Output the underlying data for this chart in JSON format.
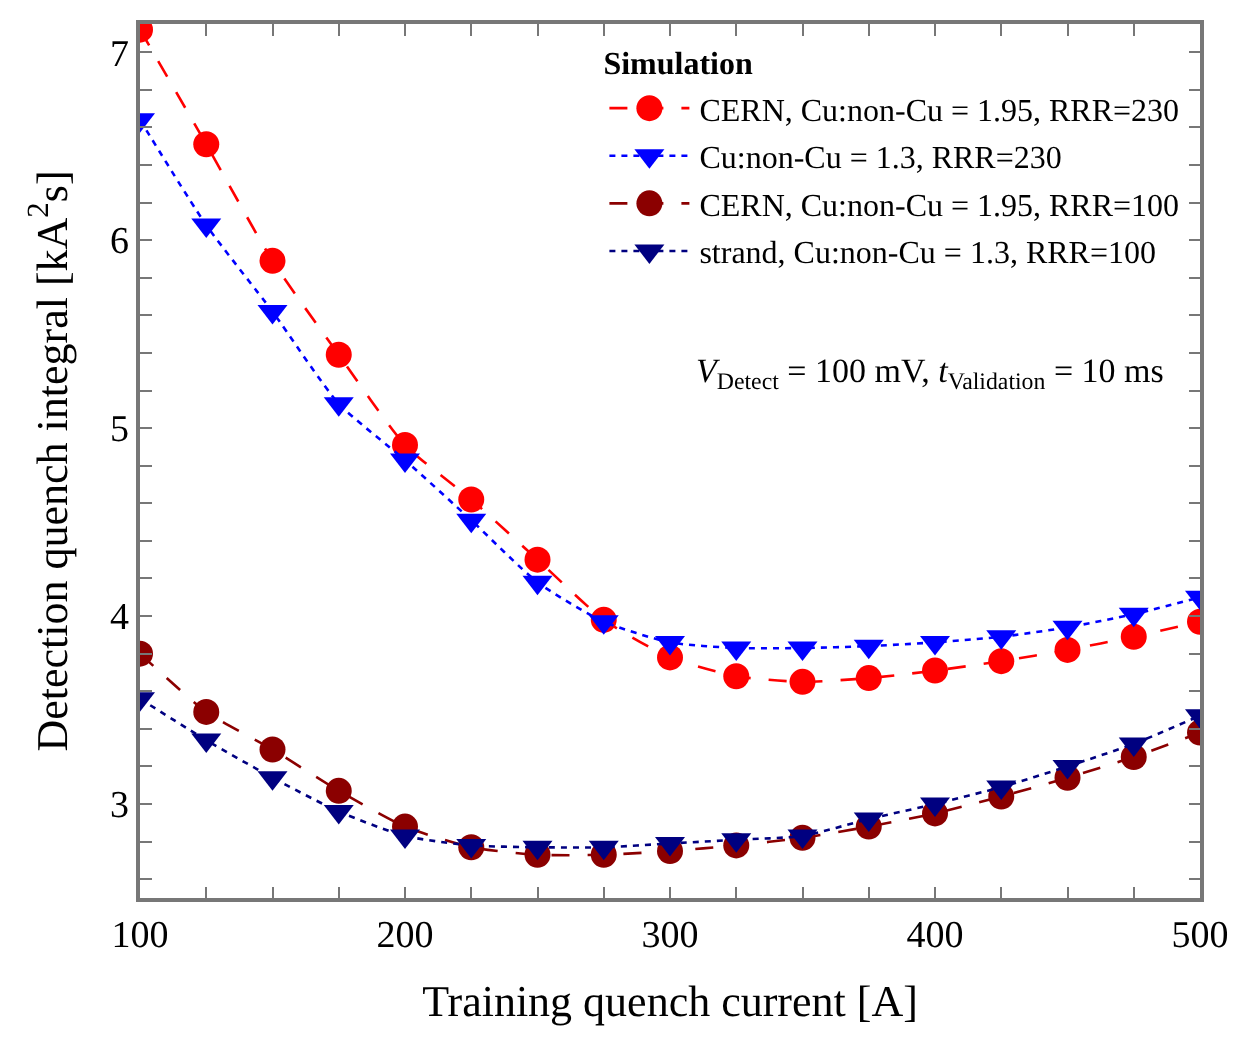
{
  "chart_data": {
    "type": "line",
    "xlabel": "Training quench current [A]",
    "ylabel": "Detection quench integral [kA$^{2}$s]",
    "legend_title": "Simulation",
    "legend": "top right",
    "x": [
      100,
      125,
      150,
      175,
      200,
      225,
      250,
      275,
      300,
      325,
      350,
      375,
      400,
      425,
      450,
      475,
      500
    ],
    "xlim": [
      100,
      500
    ],
    "xticks": [
      100,
      {
        "value": 125,
        "label": null
      },
      {
        "value": 150,
        "label": null
      },
      {
        "value": 175,
        "label": null
      },
      200,
      {
        "value": 225,
        "label": null
      },
      {
        "value": 250,
        "label": null
      },
      {
        "value": 275,
        "label": null
      },
      300,
      {
        "value": 325,
        "label": null
      },
      {
        "value": 350,
        "label": null
      },
      {
        "value": 375,
        "label": null
      },
      400,
      {
        "value": 425,
        "label": null
      },
      {
        "value": 450,
        "label": null
      },
      {
        "value": 475,
        "label": null
      },
      500
    ],
    "ylim": [
      2.5,
      7.15
    ],
    "yticks": [
      {
        "value": 2.6,
        "label": null
      },
      {
        "value": 2.8,
        "label": null
      },
      3,
      {
        "value": 3.2,
        "label": null
      },
      {
        "value": 3.4,
        "label": null
      },
      {
        "value": 3.6,
        "label": null
      },
      {
        "value": 3.8,
        "label": null
      },
      4,
      {
        "value": 4.2,
        "label": null
      },
      {
        "value": 4.4,
        "label": null
      },
      {
        "value": 4.6,
        "label": null
      },
      {
        "value": 4.8,
        "label": null
      },
      5,
      {
        "value": 5.2,
        "label": null
      },
      {
        "value": 5.4,
        "label": null
      },
      {
        "value": 5.6,
        "label": null
      },
      {
        "value": 5.8,
        "label": null
      },
      6,
      {
        "value": 6.2,
        "label": null
      },
      {
        "value": 6.4,
        "label": null
      },
      {
        "value": 6.6,
        "label": null
      },
      {
        "value": 6.8,
        "label": null
      },
      7
    ],
    "annotations": [
      "V$_{Detect}$ = 100 mV, t$_{Validation}$ = 10 ms"
    ],
    "series": [
      {
        "name": "CERN, Cu:non-Cu = 1.95, RRR=230",
        "color": "#ff0000",
        "marker": "circle",
        "line_style": "dashed",
        "values": [
          7.12,
          6.51,
          5.89,
          5.39,
          4.91,
          4.62,
          4.3,
          3.98,
          3.78,
          3.68,
          3.65,
          3.67,
          3.71,
          3.76,
          3.82,
          3.89,
          3.97
        ]
      },
      {
        "name": "Cu:non-Cu = 1.3, RRR=230",
        "color": "#0000ff",
        "marker": "triangle",
        "line_style": "dotted",
        "values": [
          6.64,
          6.08,
          5.62,
          5.13,
          4.83,
          4.51,
          4.18,
          3.97,
          3.86,
          3.83,
          3.83,
          3.84,
          3.86,
          3.89,
          3.94,
          4.01,
          4.1
        ]
      },
      {
        "name": "CERN, Cu:non-Cu = 1.95, RRR=100",
        "color": "#8b0000",
        "marker": "circle",
        "line_style": "dashed",
        "values": [
          3.8,
          3.49,
          3.29,
          3.07,
          2.88,
          2.77,
          2.73,
          2.73,
          2.75,
          2.78,
          2.82,
          2.88,
          2.95,
          3.04,
          3.14,
          3.25,
          3.38
        ]
      },
      {
        "name": "strand, Cu:non-Cu = 1.3, RRR=100",
        "color": "#000080",
        "marker": "triangle",
        "line_style": "dotted",
        "values": [
          3.56,
          3.34,
          3.14,
          2.96,
          2.83,
          2.78,
          2.77,
          2.77,
          2.79,
          2.81,
          2.83,
          2.92,
          3.0,
          3.09,
          3.2,
          3.32,
          3.47
        ]
      }
    ]
  }
}
